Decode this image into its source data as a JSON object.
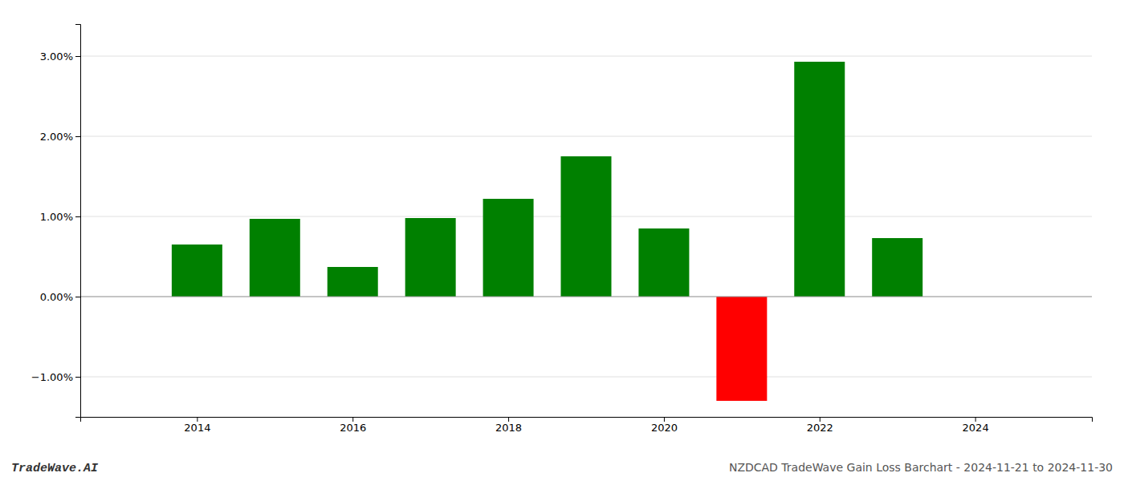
{
  "chart_data": {
    "type": "bar",
    "x": [
      2014,
      2015,
      2016,
      2017,
      2018,
      2019,
      2020,
      2021,
      2022,
      2023
    ],
    "values": [
      0.0065,
      0.0097,
      0.0037,
      0.0098,
      0.0122,
      0.0175,
      0.0085,
      -0.013,
      0.0293,
      0.0073
    ],
    "colors": [
      "#008000",
      "#008000",
      "#008000",
      "#008000",
      "#008000",
      "#008000",
      "#008000",
      "#ff0000",
      "#008000",
      "#008000"
    ],
    "xlim": [
      2012.5,
      2025.5
    ],
    "xticks": [
      2014,
      2016,
      2018,
      2020,
      2022,
      2024
    ],
    "ylim": [
      -0.015,
      0.034
    ],
    "yticks": [
      {
        "value": -0.01,
        "label": "−1.00%"
      },
      {
        "value": 0.0,
        "label": "0.00%"
      },
      {
        "value": 0.01,
        "label": "1.00%"
      },
      {
        "value": 0.02,
        "label": "2.00%"
      },
      {
        "value": 0.03,
        "label": "3.00%"
      }
    ],
    "grid": true,
    "annotations": [
      "TradeWave.AI",
      "NZDCAD TradeWave Gain Loss Barchart - 2024-11-21 to 2024-11-30"
    ]
  }
}
